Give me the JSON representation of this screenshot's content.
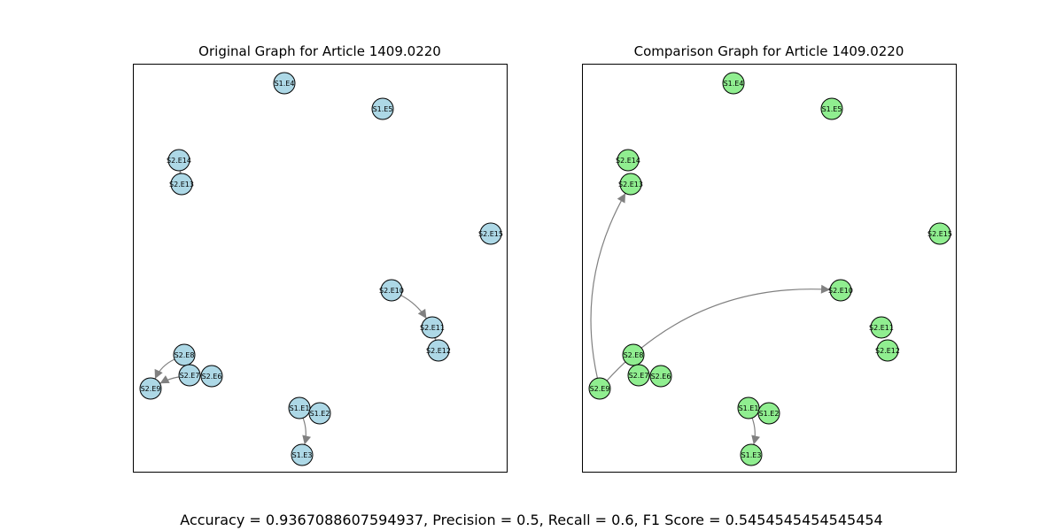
{
  "figure": {
    "left_title": "Original Graph for Article 1409.0220",
    "right_title": "Comparison Graph for Article 1409.0220",
    "metrics": "Accuracy = 0.9367088607594937, Precision = 0.5, Recall = 0.6, F1 Score = 0.5454545454545454"
  },
  "colors": {
    "left_node_fill": "#add8e6",
    "right_node_fill": "#90ee90",
    "node_stroke": "#000000",
    "edge": "#808080"
  },
  "nodes": [
    "S1.E4",
    "S1.E5",
    "S2.E14",
    "S2.E13",
    "S2.E15",
    "S2.E10",
    "S2.E11",
    "S2.E12",
    "S2.E8",
    "S2.E7",
    "S2.E6",
    "S2.E9",
    "S1.E1",
    "S1.E2",
    "S1.E3"
  ],
  "left_graph": {
    "edges": [
      {
        "source": "S2.E13",
        "target": "S2.E14"
      },
      {
        "source": "S2.E10",
        "target": "S2.E11"
      },
      {
        "source": "S2.E11",
        "target": "S2.E12"
      },
      {
        "source": "S2.E8",
        "target": "S2.E9"
      },
      {
        "source": "S2.E7",
        "target": "S2.E9"
      },
      {
        "source": "S2.E6",
        "target": "S2.E7"
      },
      {
        "source": "S1.E2",
        "target": "S1.E1"
      },
      {
        "source": "S1.E1",
        "target": "S1.E3"
      }
    ]
  },
  "right_graph": {
    "edges": [
      {
        "source": "S2.E9",
        "target": "S2.E13"
      },
      {
        "source": "S2.E9",
        "target": "S2.E10"
      },
      {
        "source": "S2.E6",
        "target": "S2.E7"
      },
      {
        "source": "S1.E1",
        "target": "S1.E3"
      }
    ]
  }
}
